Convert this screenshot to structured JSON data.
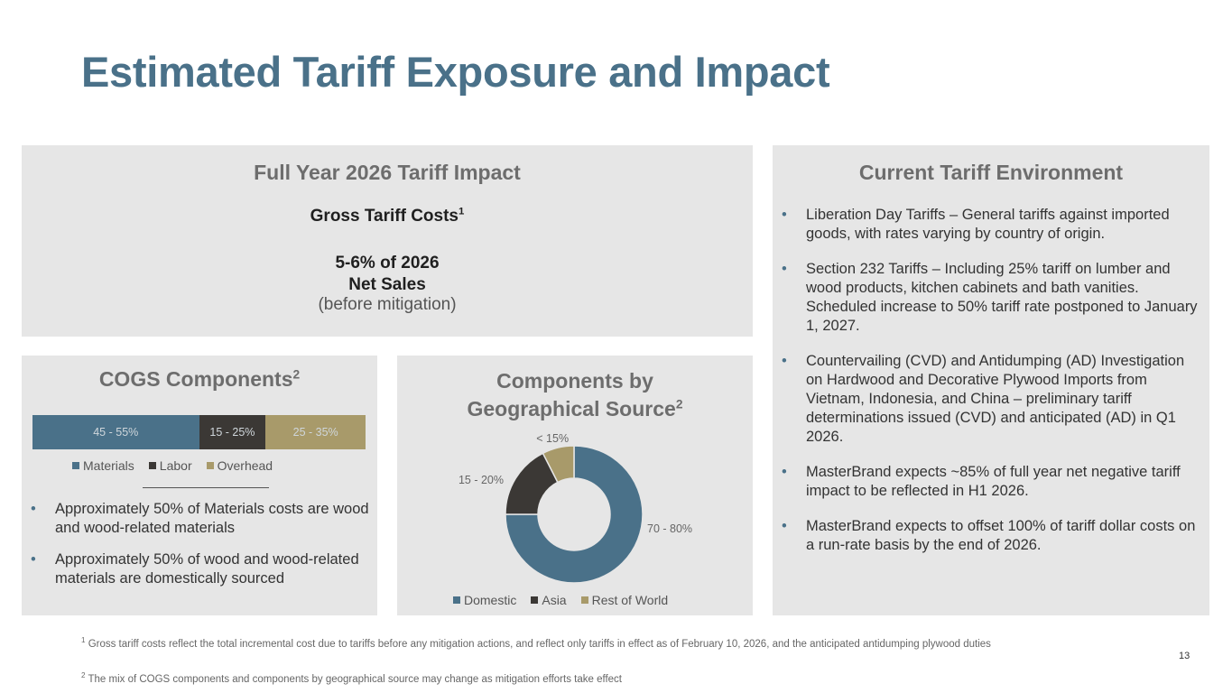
{
  "title": "Estimated Tariff Exposure and Impact",
  "impact": {
    "heading": "Full Year 2026 Tariff Impact",
    "gross_label": "Gross Tariff Costs",
    "gross_sup": "1",
    "pct_line1": "5-6% of 2026",
    "pct_line2": "Net Sales",
    "mitigation": "(before mitigation)"
  },
  "environment": {
    "heading": "Current Tariff Environment",
    "bullets": [
      "Liberation Day Tariffs – General tariffs against imported goods, with rates varying by country of origin.",
      "Section 232 Tariffs – Including 25% tariff on lumber and wood products, kitchen cabinets and bath vanities. Scheduled increase to 50% tariff rate postponed to January 1, 2027.",
      "Countervailing (CVD) and Antidumping (AD) Investigation on Hardwood and Decorative Plywood Imports from Vietnam, Indonesia, and China – preliminary tariff determinations issued (CVD) and anticipated (AD) in Q1 2026.",
      "MasterBrand expects ~85% of full year net negative tariff impact to be reflected in H1 2026.",
      "MasterBrand expects to offset 100% of tariff dollar costs on a run-rate basis by the end of 2026."
    ]
  },
  "cogs": {
    "heading": "COGS Components",
    "heading_sup": "2",
    "bullets": [
      "Approximately 50% of Materials costs are wood and wood-related materials",
      "Approximately 50% of wood and wood-related materials are domestically sourced"
    ]
  },
  "geo": {
    "heading_line1": "Components by",
    "heading_line2": "Geographical Source",
    "heading_sup": "2"
  },
  "chart_data": [
    {
      "type": "bar",
      "orientation": "horizontal-stacked",
      "title": "COGS Components",
      "categories": [
        "COGS"
      ],
      "series": [
        {
          "name": "Materials",
          "label": "45 - 55%",
          "values": [
            50
          ],
          "color": "#4a7189"
        },
        {
          "name": "Labor",
          "label": "15 - 25%",
          "values": [
            20
          ],
          "color": "#3b3835"
        },
        {
          "name": "Overhead",
          "label": "25 - 35%",
          "values": [
            30
          ],
          "color": "#a89a6a"
        }
      ],
      "legend": "bottom"
    },
    {
      "type": "pie",
      "style": "donut",
      "title": "Components by Geographical Source",
      "slices": [
        {
          "name": "Domestic",
          "label": "70 - 80%",
          "value": 75,
          "color": "#4a7189"
        },
        {
          "name": "Asia",
          "label": "15 - 20%",
          "value": 17.5,
          "color": "#3b3835"
        },
        {
          "name": "Rest of World",
          "label": "< 15%",
          "value": 7.5,
          "color": "#a89a6a"
        }
      ],
      "legend": "bottom"
    }
  ],
  "footnotes": {
    "fn1_sup": "1",
    "fn1": "Gross tariff costs reflect the total incremental cost due to tariffs before any mitigation actions, and reflect only tariffs in effect as of February 10, 2026, and the anticipated antidumping plywood duties",
    "fn2_sup": "2",
    "fn2": "The mix of COGS components and components by geographical source may change as mitigation efforts take effect"
  },
  "page_number": "13"
}
